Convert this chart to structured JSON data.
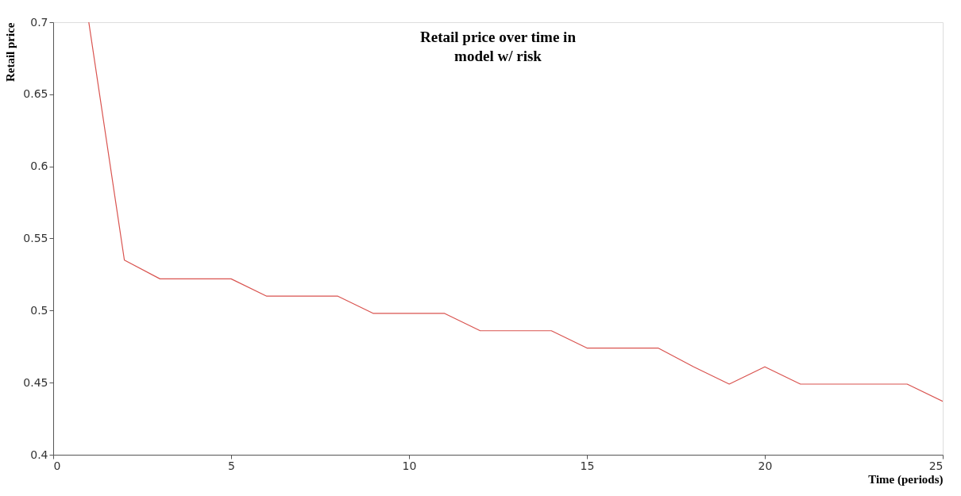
{
  "chart_data": {
    "type": "line",
    "title": "Retail price over time in\nmodel w/ risk",
    "xlabel": "Time (periods)",
    "ylabel": "Retail price",
    "x": [
      1,
      2,
      3,
      4,
      5,
      6,
      7,
      8,
      9,
      10,
      11,
      12,
      13,
      14,
      15,
      16,
      17,
      18,
      19,
      20,
      21,
      22,
      23,
      24,
      25
    ],
    "series": [
      {
        "color": "#d9534f",
        "values": [
          0.7,
          0.535,
          0.522,
          0.522,
          0.522,
          0.51,
          0.51,
          0.51,
          0.498,
          0.498,
          0.498,
          0.486,
          0.486,
          0.486,
          0.474,
          0.474,
          0.474,
          0.461,
          0.449,
          0.461,
          0.449,
          0.449,
          0.449,
          0.449,
          0.437
        ]
      }
    ],
    "xlim": [
      0,
      25
    ],
    "xticks": [
      0,
      5,
      10,
      15,
      20,
      25
    ],
    "ylim": [
      0.4,
      0.7
    ],
    "yticks": [
      0.4,
      0.45,
      0.5,
      0.55,
      0.6,
      0.65,
      0.7
    ],
    "grid": false,
    "legend": false,
    "marker": "none",
    "line_style": "solid"
  }
}
